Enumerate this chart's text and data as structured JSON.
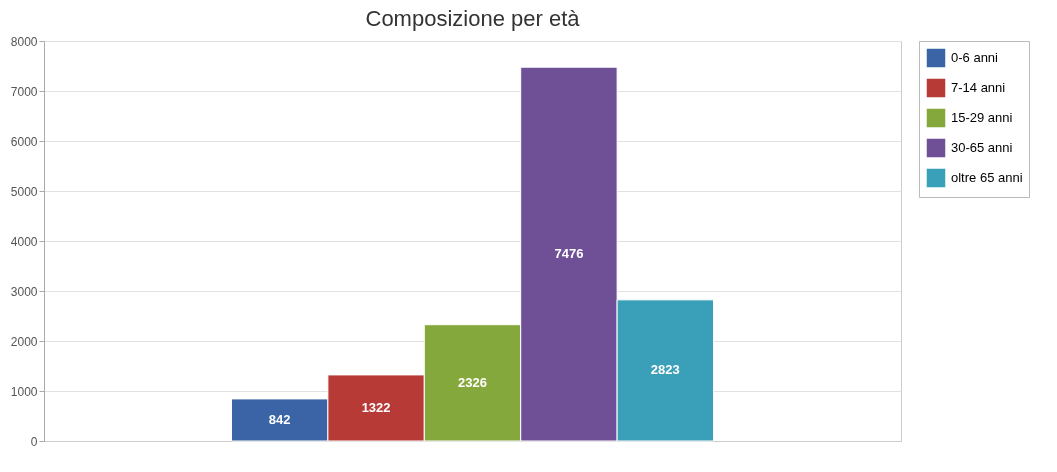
{
  "chart_data": {
    "type": "bar",
    "title": "Composizione per età",
    "categories": [
      null
    ],
    "series": [
      {
        "name": "0-6 anni",
        "color": "#3a64a6",
        "values": [
          842
        ]
      },
      {
        "name": "7-14 anni",
        "color": "#b83a37",
        "values": [
          1322
        ]
      },
      {
        "name": "15-29 anni",
        "color": "#85a83d",
        "values": [
          2326
        ]
      },
      {
        "name": "30-65 anni",
        "color": "#6f4f95",
        "values": [
          7476
        ]
      },
      {
        "name": "oltre 65 anni",
        "color": "#3a9fb8",
        "values": [
          2823
        ]
      }
    ],
    "ylim": [
      0,
      8000
    ],
    "yticks": [
      0,
      1000,
      2000,
      3000,
      4000,
      5000,
      6000,
      7000,
      8000
    ],
    "grid": true,
    "legend": "top right",
    "data_labels": true
  }
}
